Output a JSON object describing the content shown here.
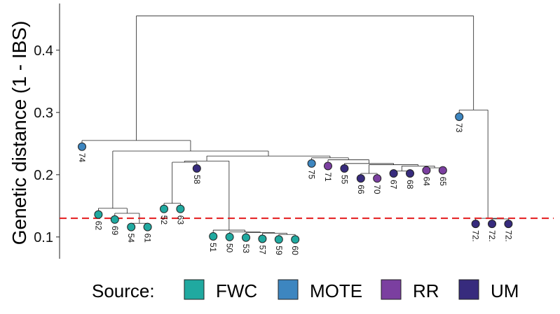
{
  "chart_data": {
    "type": "dendrogram",
    "ylabel": "Genetic distance (1 - IBS)",
    "ylim": [
      0.065,
      0.475
    ],
    "yticks": [
      0.1,
      0.2,
      0.3,
      0.4
    ],
    "ytick_labels": [
      "0.1",
      "0.2",
      "0.3",
      "0.4"
    ],
    "threshold": 0.13,
    "threshold_color": "#e41a1c",
    "legend": {
      "title": "Source:",
      "entries": [
        {
          "label": "FWC",
          "color": "#20a9a0"
        },
        {
          "label": "MOTE",
          "color": "#3d86c0"
        },
        {
          "label": "RR",
          "color": "#7b3fa0"
        },
        {
          "label": "UM",
          "color": "#372b7d"
        }
      ]
    },
    "leaves": [
      {
        "id": "74",
        "label": "74",
        "source": "MOTE",
        "height": 0.245
      },
      {
        "id": "62",
        "label": "62",
        "source": "FWC",
        "height": 0.136
      },
      {
        "id": "69",
        "label": "69",
        "source": "FWC",
        "height": 0.128
      },
      {
        "id": "54",
        "label": "54",
        "source": "FWC",
        "height": 0.116
      },
      {
        "id": "61",
        "label": "61",
        "source": "FWC",
        "height": 0.116
      },
      {
        "id": "52",
        "label": "52",
        "source": "FWC",
        "height": 0.145
      },
      {
        "id": "63",
        "label": "63",
        "source": "FWC",
        "height": 0.145
      },
      {
        "id": "58",
        "label": "58",
        "source": "UM",
        "height": 0.21
      },
      {
        "id": "51",
        "label": "51",
        "source": "FWC",
        "height": 0.101
      },
      {
        "id": "50",
        "label": "50",
        "source": "FWC",
        "height": 0.1
      },
      {
        "id": "53",
        "label": "53",
        "source": "FWC",
        "height": 0.099
      },
      {
        "id": "57",
        "label": "57",
        "source": "FWC",
        "height": 0.097
      },
      {
        "id": "59",
        "label": "59",
        "source": "FWC",
        "height": 0.096
      },
      {
        "id": "60",
        "label": "60",
        "source": "FWC",
        "height": 0.096
      },
      {
        "id": "75",
        "label": "75",
        "source": "MOTE",
        "height": 0.218
      },
      {
        "id": "71",
        "label": "71",
        "source": "RR",
        "height": 0.214
      },
      {
        "id": "55",
        "label": "55",
        "source": "UM",
        "height": 0.21
      },
      {
        "id": "66",
        "label": "66",
        "source": "UM",
        "height": 0.194
      },
      {
        "id": "70",
        "label": "70",
        "source": "RR",
        "height": 0.194
      },
      {
        "id": "67",
        "label": "67",
        "source": "UM",
        "height": 0.202
      },
      {
        "id": "68",
        "label": "68",
        "source": "UM",
        "height": 0.202
      },
      {
        "id": "64",
        "label": "64",
        "source": "RR",
        "height": 0.207
      },
      {
        "id": "65",
        "label": "65",
        "source": "RR",
        "height": 0.207
      },
      {
        "id": "73",
        "label": "73",
        "source": "MOTE",
        "height": 0.293
      },
      {
        "id": "72a",
        "label": "72.",
        "source": "UM",
        "height": 0.121
      },
      {
        "id": "72b",
        "label": "72.",
        "source": "UM",
        "height": 0.121
      },
      {
        "id": "72c",
        "label": "72.",
        "source": "UM",
        "height": 0.121
      }
    ],
    "merges": [
      {
        "id": "n1",
        "children": [
          "54",
          "61"
        ],
        "height": 0.122
      },
      {
        "id": "n2",
        "children": [
          "69",
          "n1"
        ],
        "height": 0.138
      },
      {
        "id": "n3",
        "children": [
          "62",
          "n2"
        ],
        "height": 0.146
      },
      {
        "id": "n4",
        "children": [
          "52",
          "63"
        ],
        "height": 0.154
      },
      {
        "id": "n5",
        "children": [
          "n4",
          "58"
        ],
        "height": 0.22
      },
      {
        "id": "n6",
        "children": [
          "59",
          "60"
        ],
        "height": 0.104
      },
      {
        "id": "n7",
        "children": [
          "57",
          "n6"
        ],
        "height": 0.106
      },
      {
        "id": "n8",
        "children": [
          "53",
          "n7"
        ],
        "height": 0.107
      },
      {
        "id": "n9",
        "children": [
          "50",
          "n8"
        ],
        "height": 0.108
      },
      {
        "id": "n10",
        "children": [
          "51",
          "n9"
        ],
        "height": 0.111
      },
      {
        "id": "n11",
        "children": [
          "n5",
          "n10"
        ],
        "height": 0.222
      },
      {
        "id": "n12",
        "children": [
          "66",
          "70"
        ],
        "height": 0.202
      },
      {
        "id": "n13",
        "children": [
          "67",
          "68"
        ],
        "height": 0.206
      },
      {
        "id": "n14",
        "children": [
          "64",
          "65"
        ],
        "height": 0.211
      },
      {
        "id": "n15",
        "children": [
          "n13",
          "n14"
        ],
        "height": 0.214
      },
      {
        "id": "n16",
        "children": [
          "n12",
          "n15"
        ],
        "height": 0.216
      },
      {
        "id": "n17",
        "children": [
          "55",
          "n16"
        ],
        "height": 0.218
      },
      {
        "id": "n18",
        "children": [
          "71",
          "n17"
        ],
        "height": 0.224
      },
      {
        "id": "n19",
        "children": [
          "75",
          "n18"
        ],
        "height": 0.227
      },
      {
        "id": "n20",
        "children": [
          "n11",
          "n19"
        ],
        "height": 0.23
      },
      {
        "id": "n21",
        "children": [
          "n3",
          "n20"
        ],
        "height": 0.238
      },
      {
        "id": "n22",
        "children": [
          "74",
          "n21"
        ],
        "height": 0.255
      },
      {
        "id": "n23",
        "children": [
          "72b",
          "72c"
        ],
        "height": 0.129
      },
      {
        "id": "n24",
        "children": [
          "72a",
          "n23"
        ],
        "height": 0.13
      },
      {
        "id": "n25",
        "children": [
          "73",
          "n24"
        ],
        "height": 0.304
      },
      {
        "id": "n26",
        "children": [
          "n22",
          "n25"
        ],
        "height": 0.455
      }
    ]
  }
}
